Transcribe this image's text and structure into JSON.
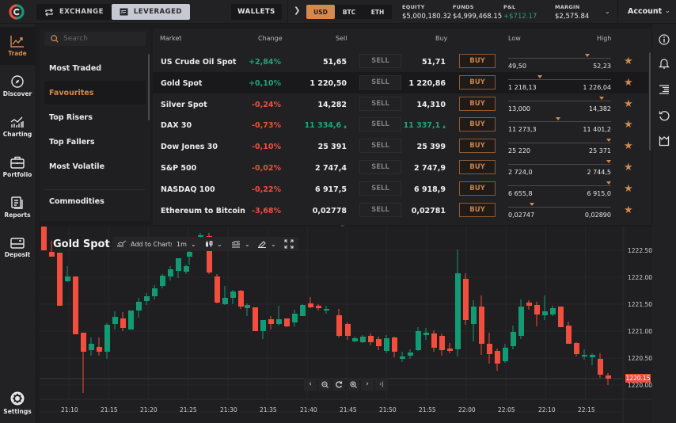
{
  "topbar": {
    "tabs": [
      {
        "label": "EXCHANGE",
        "icon": "exchange-arrows-icon",
        "active": false
      },
      {
        "label": "LEVERAGED",
        "icon": "leveraged-window-icon",
        "active": true
      }
    ],
    "wallets_label": "WALLETS",
    "currencies": [
      {
        "label": "USD",
        "active": true
      },
      {
        "label": "BTC",
        "active": false
      },
      {
        "label": "ETH",
        "active": false
      }
    ],
    "stats": [
      {
        "label": "EQUITY",
        "value": "$5,000,180.32"
      },
      {
        "label": "FUNDS",
        "value": "$4,999,468.15"
      },
      {
        "label": "P&L",
        "value": "+$712.17",
        "positive": true
      },
      {
        "label": "MARGIN",
        "value": "$2,575.84"
      }
    ],
    "account_label": "Account"
  },
  "leftnav": {
    "items": [
      {
        "label": "Trade",
        "icon": "trending-up-chart-icon",
        "active": true
      },
      {
        "label": "Discover",
        "icon": "compass-icon"
      },
      {
        "label": "Charting",
        "icon": "bar-line-chart-icon"
      },
      {
        "label": "Portfolio",
        "icon": "briefcase-icon"
      },
      {
        "label": "Reports",
        "icon": "document-stack-icon"
      },
      {
        "label": "Deposit",
        "icon": "credit-card-icon"
      }
    ],
    "settings_label": "Settings"
  },
  "categories": {
    "search_placeholder": "Search",
    "items": [
      {
        "label": "Most Traded"
      },
      {
        "label": "Favourites",
        "active": true
      },
      {
        "label": "Top Risers"
      },
      {
        "label": "Top Fallers"
      },
      {
        "label": "Most Volatile"
      },
      {
        "label": "Commodities"
      }
    ]
  },
  "markets": {
    "headers": {
      "market": "Market",
      "change": "Change",
      "sell": "Sell",
      "buy": "Buy",
      "low": "Low",
      "high": "High"
    },
    "sell_label": "SELL",
    "buy_label": "BUY",
    "rows": [
      {
        "name": "US Crude Oil Spot",
        "change": "+2,84%",
        "dir": "pos",
        "sell": "51,65",
        "buy": "51,71",
        "low": "49,50",
        "high": "52,23",
        "marker": 0.78
      },
      {
        "name": "Gold Spot",
        "change": "+0,10%",
        "dir": "pos",
        "sell": "1 220,50",
        "buy": "1 220,86",
        "low": "1 218,13",
        "high": "1 226,04",
        "marker": 0.3,
        "selected": true
      },
      {
        "name": "Silver Spot",
        "change": "-0,24%",
        "dir": "neg",
        "sell": "14,282",
        "buy": "14,310",
        "low": "13,000",
        "high": "14,382",
        "marker": 0.93
      },
      {
        "name": "DAX 30",
        "change": "-0,73%",
        "dir": "neg",
        "sell": "11 334,6",
        "buy": "11 337,1",
        "low": "11 273,3",
        "high": "11 401,2",
        "marker": 0.48,
        "ticking_up": true
      },
      {
        "name": "Dow Jones 30",
        "change": "-0,10%",
        "dir": "neg",
        "sell": "25 391",
        "buy": "25 399",
        "low": "25 220",
        "high": "25 371",
        "marker": 1.0
      },
      {
        "name": "S&P 500",
        "change": "-0,02%",
        "dir": "neg",
        "sell": "2 747,4",
        "buy": "2 747,9",
        "low": "2 724,0",
        "high": "2 744,5",
        "marker": 1.0
      },
      {
        "name": "NASDAQ 100",
        "change": "-0,22%",
        "dir": "neg",
        "sell": "6 917,5",
        "buy": "6 918,9",
        "low": "6 655,8",
        "high": "6 915,0",
        "marker": 1.0
      },
      {
        "name": "Ethereum to Bitcoin",
        "change": "-3,68%",
        "dir": "neg",
        "sell": "0,02778",
        "buy": "0,02781",
        "low": "0,02747",
        "high": "0,02890",
        "marker": 0.22
      }
    ]
  },
  "rightbar": {
    "icons": [
      "info-icon",
      "bell-icon",
      "order-book-icon",
      "history-icon",
      "export-icon"
    ]
  },
  "chart": {
    "title": "Gold Spot",
    "add_to_charts_label": "Add to Charts",
    "interval": "1m",
    "y_ticks": [
      "1222.50",
      "1222.00",
      "1221.50",
      "1221.00",
      "1220.50",
      "1220.00"
    ],
    "current_price": "1220.15",
    "x_ticks": [
      "21:10",
      "21:15",
      "21:20",
      "21:25",
      "21:30",
      "21:35",
      "21:40",
      "21:45",
      "21:50",
      "21:55",
      "22:00",
      "22:05",
      "22:10",
      "22:15"
    ],
    "colors": {
      "up": "#139a74",
      "down": "#f24e3e"
    }
  }
}
